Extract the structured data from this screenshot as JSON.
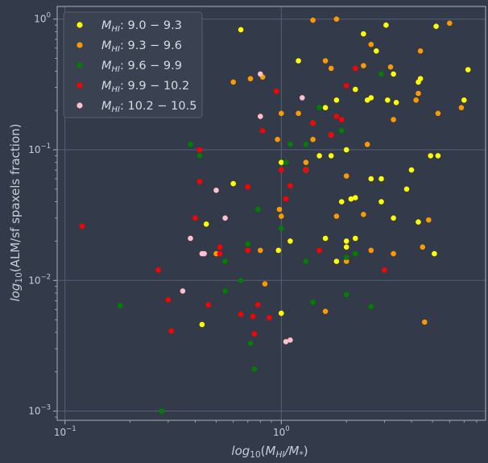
{
  "chart_data": {
    "type": "scatter",
    "xscale": "log",
    "yscale": "log",
    "xlim": [
      0.092,
      8.8
    ],
    "ylim": [
      0.00085,
      1.25
    ],
    "grid": true,
    "legend_placement": "top-left",
    "xlabel": "log10(MHI/M*)",
    "ylabel": "log10(ALM/sf spaxels fraction)",
    "xticks": [
      {
        "value": 0.1,
        "base": "10",
        "exp": "−1"
      },
      {
        "value": 1,
        "base": "10",
        "exp": "0"
      }
    ],
    "yticks": [
      {
        "value": 0.001,
        "base": "10",
        "exp": "−3"
      },
      {
        "value": 0.01,
        "base": "10",
        "exp": "−2"
      },
      {
        "value": 0.1,
        "base": "10",
        "exp": "−1"
      },
      {
        "value": 1,
        "base": "10",
        "exp": "0"
      }
    ],
    "series": [
      {
        "name": "MHI: 9.0 − 9.3",
        "color": "#ffff00",
        "points": [
          [
            0.65,
            0.83
          ],
          [
            1.2,
            0.48
          ],
          [
            1.8,
            0.24
          ],
          [
            2.4,
            0.77
          ],
          [
            2.75,
            0.57
          ],
          [
            3.05,
            0.9
          ],
          [
            5.2,
            0.88
          ],
          [
            7.3,
            0.41
          ],
          [
            3.3,
            0.38
          ],
          [
            4.4,
            0.35
          ],
          [
            4.3,
            0.33
          ],
          [
            2.2,
            0.29
          ],
          [
            2.5,
            0.24
          ],
          [
            2.6,
            0.25
          ],
          [
            3.1,
            0.24
          ],
          [
            3.4,
            0.23
          ],
          [
            7.0,
            0.24
          ],
          [
            1.6,
            0.21
          ],
          [
            1.0,
            0.08
          ],
          [
            1.3,
            0.07
          ],
          [
            1.5,
            0.09
          ],
          [
            1.7,
            0.09
          ],
          [
            2.0,
            0.1
          ],
          [
            4.9,
            0.09
          ],
          [
            5.3,
            0.09
          ],
          [
            4.0,
            0.07
          ],
          [
            2.6,
            0.06
          ],
          [
            2.9,
            0.06
          ],
          [
            0.6,
            0.055
          ],
          [
            2.2,
            0.043
          ],
          [
            2.1,
            0.042
          ],
          [
            1.9,
            0.04
          ],
          [
            2.9,
            0.04
          ],
          [
            3.8,
            0.05
          ],
          [
            0.45,
            0.027
          ],
          [
            3.3,
            0.03
          ],
          [
            4.3,
            0.028
          ],
          [
            1.6,
            0.021
          ],
          [
            2.0,
            0.02
          ],
          [
            2.2,
            0.021
          ],
          [
            2.0,
            0.018
          ],
          [
            1.1,
            0.02
          ],
          [
            1.8,
            0.014
          ],
          [
            5.1,
            0.016
          ],
          [
            0.97,
            0.017
          ],
          [
            1.0,
            0.0056
          ],
          [
            0.43,
            0.0046
          ]
        ]
      },
      {
        "name": "MHI: 9.3 − 9.6",
        "color": "#ff9900",
        "points": [
          [
            1.4,
            0.98
          ],
          [
            1.8,
            1.0
          ],
          [
            6.0,
            0.93
          ],
          [
            2.6,
            0.64
          ],
          [
            4.4,
            0.57
          ],
          [
            1.6,
            0.48
          ],
          [
            1.7,
            0.42
          ],
          [
            2.4,
            0.44
          ],
          [
            3.2,
            0.43
          ],
          [
            0.6,
            0.33
          ],
          [
            0.72,
            0.35
          ],
          [
            0.82,
            0.36
          ],
          [
            4.3,
            0.27
          ],
          [
            4.2,
            0.24
          ],
          [
            5.3,
            0.19
          ],
          [
            6.8,
            0.21
          ],
          [
            1.0,
            0.19
          ],
          [
            3.3,
            0.17
          ],
          [
            1.2,
            0.19
          ],
          [
            0.96,
            0.12
          ],
          [
            1.4,
            0.16
          ],
          [
            1.7,
            0.13
          ],
          [
            2.5,
            0.11
          ],
          [
            1.4,
            0.12
          ],
          [
            1.3,
            0.08
          ],
          [
            2.0,
            0.063
          ],
          [
            0.98,
            0.035
          ],
          [
            1.0,
            0.031
          ],
          [
            1.8,
            0.031
          ],
          [
            2.4,
            0.032
          ],
          [
            0.5,
            0.016
          ],
          [
            0.8,
            0.017
          ],
          [
            2.0,
            0.014
          ],
          [
            2.6,
            0.017
          ],
          [
            3.3,
            0.016
          ],
          [
            4.5,
            0.018
          ],
          [
            4.8,
            0.029
          ],
          [
            0.84,
            0.0094
          ],
          [
            1.6,
            0.0058
          ],
          [
            4.6,
            0.0048
          ]
        ]
      },
      {
        "name": "MHI: 9.6 − 9.9",
        "color": "#008000",
        "points": [
          [
            2.9,
            0.38
          ],
          [
            1.5,
            0.21
          ],
          [
            1.9,
            0.14
          ],
          [
            1.1,
            0.11
          ],
          [
            1.3,
            0.11
          ],
          [
            0.38,
            0.11
          ],
          [
            0.42,
            0.09
          ],
          [
            1.05,
            0.08
          ],
          [
            0.78,
            0.035
          ],
          [
            1.0,
            0.025
          ],
          [
            0.7,
            0.019
          ],
          [
            0.55,
            0.014
          ],
          [
            1.3,
            0.014
          ],
          [
            2.0,
            0.015
          ],
          [
            2.2,
            0.016
          ],
          [
            0.65,
            0.01
          ],
          [
            0.55,
            0.0083
          ],
          [
            2.0,
            0.0078
          ],
          [
            1.4,
            0.0068
          ],
          [
            2.6,
            0.0063
          ],
          [
            0.18,
            0.0064
          ],
          [
            0.72,
            0.0033
          ],
          [
            0.75,
            0.0021
          ],
          [
            0.28,
            0.001
          ]
        ]
      },
      {
        "name": "MHI: 9.9 − 10.2",
        "color": "#ff0000",
        "points": [
          [
            2.2,
            0.42
          ],
          [
            2.0,
            0.31
          ],
          [
            0.95,
            0.28
          ],
          [
            1.8,
            0.18
          ],
          [
            1.9,
            0.17
          ],
          [
            0.82,
            0.14
          ],
          [
            1.4,
            0.16
          ],
          [
            1.7,
            0.13
          ],
          [
            1.3,
            0.07
          ],
          [
            0.42,
            0.1
          ],
          [
            1.0,
            0.07
          ],
          [
            1.1,
            0.053
          ],
          [
            1.05,
            0.042
          ],
          [
            0.42,
            0.057
          ],
          [
            0.7,
            0.052
          ],
          [
            0.4,
            0.03
          ],
          [
            0.12,
            0.026
          ],
          [
            0.52,
            0.018
          ],
          [
            0.52,
            0.016
          ],
          [
            0.7,
            0.017
          ],
          [
            1.5,
            0.017
          ],
          [
            0.27,
            0.012
          ],
          [
            3.0,
            0.012
          ],
          [
            0.3,
            0.0071
          ],
          [
            0.46,
            0.0065
          ],
          [
            0.78,
            0.0065
          ],
          [
            0.65,
            0.0055
          ],
          [
            0.74,
            0.0053
          ],
          [
            0.88,
            0.0052
          ],
          [
            0.31,
            0.0041
          ],
          [
            0.75,
            0.0039
          ]
        ]
      },
      {
        "name": "MHI: 10.2 − 10.5",
        "color": "#ffc0cb",
        "points": [
          [
            0.8,
            0.38
          ],
          [
            1.25,
            0.25
          ],
          [
            0.8,
            0.18
          ],
          [
            0.5,
            0.049
          ],
          [
            0.55,
            0.03
          ],
          [
            0.38,
            0.021
          ],
          [
            0.43,
            0.016
          ],
          [
            0.44,
            0.016
          ],
          [
            0.35,
            0.0083
          ],
          [
            1.05,
            0.0034
          ],
          [
            1.1,
            0.0035
          ]
        ]
      }
    ]
  }
}
